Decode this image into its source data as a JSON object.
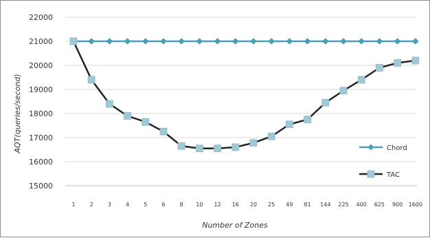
{
  "chart_data": {
    "type": "line",
    "xlabel": "Number of Zones",
    "ylabel": "AQT(queries/second)",
    "ylim": [
      15000,
      22000
    ],
    "yticks": [
      15000,
      16000,
      17000,
      18000,
      19000,
      20000,
      21000,
      22000
    ],
    "categories": [
      "1",
      "2",
      "3",
      "4",
      "5",
      "6",
      "8",
      "10",
      "12",
      "16",
      "20",
      "25",
      "49",
      "81",
      "144",
      "225",
      "400",
      "625",
      "900",
      "1600"
    ],
    "grid": "horizontal",
    "legend_position": "right",
    "series": [
      {
        "name": "Chord",
        "color": "#4a9fb3",
        "marker": "diamond",
        "values": [
          21000,
          21000,
          21000,
          21000,
          21000,
          21000,
          21000,
          21000,
          21000,
          21000,
          21000,
          21000,
          21000,
          21000,
          21000,
          21000,
          21000,
          21000,
          21000,
          21000
        ]
      },
      {
        "name": "TAC",
        "color": "#222222",
        "marker_color": "#9fc9d6",
        "marker": "square",
        "values": [
          21000,
          19400,
          18400,
          17900,
          17650,
          17250,
          16650,
          16550,
          16550,
          16600,
          16780,
          17050,
          17550,
          17750,
          18450,
          18950,
          19400,
          19900,
          20100,
          20200
        ]
      }
    ]
  }
}
